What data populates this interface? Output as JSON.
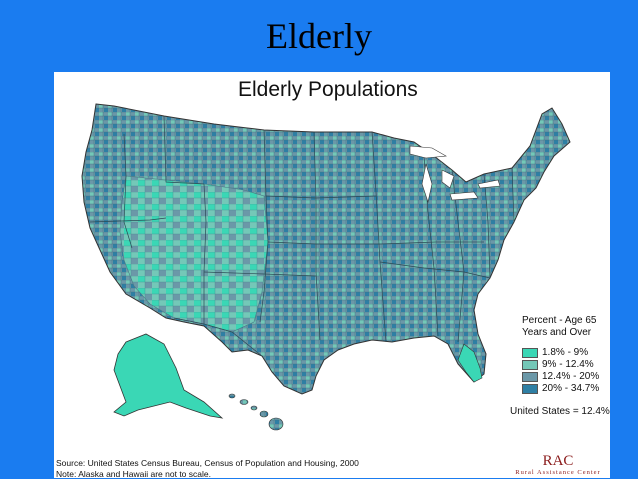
{
  "slide": {
    "title": "Elderly"
  },
  "map": {
    "heading": "Elderly Populations",
    "legend": {
      "title_line1": "Percent - Age 65",
      "title_line2": "Years and Over",
      "classes": [
        {
          "label": "1.8% - 9%",
          "color": "#3ad7b5"
        },
        {
          "label": "9% - 12.4%",
          "color": "#74c8b8"
        },
        {
          "label": "12.4% - 20%",
          "color": "#6b98a8"
        },
        {
          "label": "20% - 34.7%",
          "color": "#2e7fa4"
        }
      ]
    },
    "us_total": "United States = 12.4%",
    "source": "Source:  United States Census Bureau, Census of Population and Housing, 2000",
    "note": "Note:  Alaska and Hawaii are not to scale.",
    "logo": {
      "mark": "RAC",
      "subtitle": "Rural Assistance Center"
    }
  }
}
